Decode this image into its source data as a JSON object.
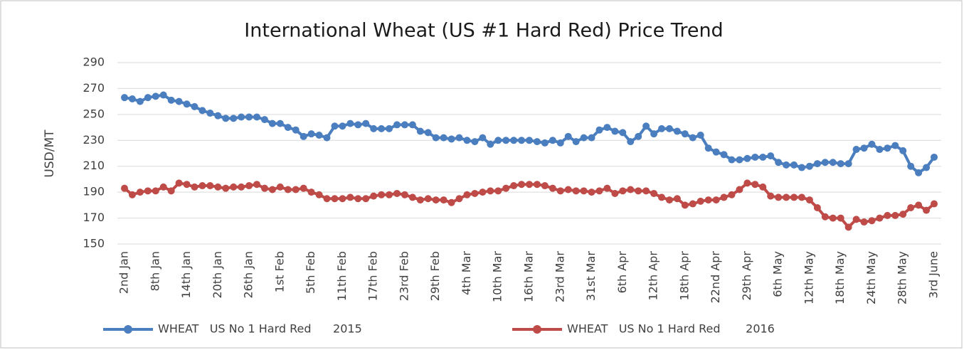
{
  "chart_data": {
    "type": "line",
    "title": "International Wheat (US #1 Hard Red) Price Trend",
    "y_label": "USD/MT",
    "categories": [
      "2nd Jan",
      null,
      null,
      null,
      "8th Jan",
      null,
      null,
      null,
      "14th Jan",
      null,
      null,
      null,
      "20th Jan",
      null,
      null,
      null,
      "26th Jan",
      null,
      null,
      null,
      "1st Feb",
      null,
      null,
      null,
      "5th Feb",
      null,
      null,
      null,
      "11th Feb",
      null,
      null,
      null,
      "17th Feb",
      null,
      null,
      null,
      "23rd Feb",
      null,
      null,
      null,
      "29th Feb",
      null,
      null,
      null,
      "4th Mar",
      null,
      null,
      null,
      "10th Mar",
      null,
      null,
      null,
      "16th Mar",
      null,
      null,
      null,
      "23rd Mar",
      null,
      null,
      null,
      "31st Mar",
      null,
      null,
      null,
      "6th Apr",
      null,
      null,
      null,
      "12th Apr",
      null,
      null,
      null,
      "18th Apr",
      null,
      null,
      null,
      "22nd Apr",
      null,
      null,
      null,
      "29th Apr",
      null,
      null,
      null,
      "6th May",
      null,
      null,
      null,
      "12th May",
      null,
      null,
      null,
      "18th May",
      null,
      null,
      null,
      "24th May",
      null,
      null,
      null,
      "28th May",
      null,
      null,
      null,
      "3rd June"
    ],
    "series": [
      {
        "name": "WHEAT   US No 1 Hard Red      2015",
        "color": "#4a7ebf",
        "values": [
          263,
          262,
          260,
          263,
          264,
          265,
          261,
          260,
          258,
          256,
          253,
          251,
          249,
          247,
          247,
          248,
          248,
          248,
          246,
          243,
          243,
          240,
          238,
          233,
          235,
          234,
          232,
          241,
          241,
          243,
          242,
          243,
          239,
          239,
          239,
          242,
          242,
          242,
          237,
          236,
          232,
          232,
          231,
          232,
          230,
          229,
          232,
          227,
          230,
          230,
          230,
          230,
          230,
          229,
          228,
          230,
          228,
          233,
          229,
          232,
          232,
          238,
          240,
          237,
          236,
          229,
          233,
          241,
          235,
          239,
          239,
          237,
          235,
          232,
          234,
          224,
          221,
          219,
          215,
          215,
          216,
          217,
          217,
          218,
          213,
          211,
          211,
          209,
          210,
          212,
          213,
          213,
          212,
          212,
          223,
          224,
          227,
          223,
          224,
          226,
          222,
          210,
          205,
          209,
          217
        ]
      },
      {
        "name": "WHEAT   US No 1 Hard Red       2016",
        "color": "#be4b48",
        "values": [
          193,
          188,
          190,
          191,
          191,
          194,
          191,
          197,
          196,
          194,
          195,
          195,
          194,
          193,
          194,
          194,
          195,
          196,
          193,
          192,
          194,
          192,
          192,
          193,
          190,
          188,
          185,
          185,
          185,
          186,
          185,
          185,
          187,
          188,
          188,
          189,
          188,
          186,
          184,
          185,
          184,
          184,
          182,
          185,
          188,
          189,
          190,
          191,
          191,
          193,
          195,
          196,
          196,
          196,
          195,
          193,
          191,
          192,
          191,
          191,
          190,
          191,
          193,
          189,
          191,
          192,
          191,
          191,
          189,
          186,
          184,
          185,
          180,
          181,
          183,
          184,
          184,
          186,
          188,
          192,
          197,
          196,
          194,
          187,
          186,
          186,
          186,
          186,
          184,
          178,
          171,
          170,
          170,
          163,
          169,
          167,
          168,
          170,
          172,
          172,
          173,
          178,
          180,
          176,
          181
        ]
      }
    ],
    "ylim": [
      150,
      290
    ],
    "yticks": [
      150,
      170,
      190,
      210,
      230,
      250,
      270,
      290
    ],
    "grid": true,
    "legend": "bottom"
  }
}
